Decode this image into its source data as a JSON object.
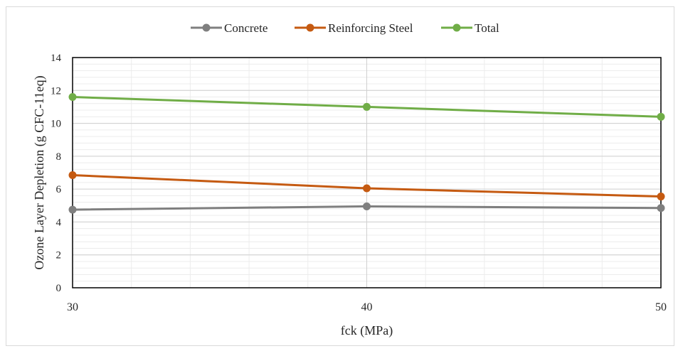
{
  "chart_data": {
    "type": "line",
    "title": "",
    "xlabel": "fck (MPa)",
    "ylabel": "Ozone Layer Depletion (g CFC-11eq)",
    "x": [
      30,
      40,
      50
    ],
    "x_tick_labels": [
      "30",
      "40",
      "50"
    ],
    "xlim": [
      30,
      50
    ],
    "ylim": [
      0,
      14
    ],
    "y_tick_labels": [
      "0",
      "2",
      "4",
      "6",
      "8",
      "10",
      "12",
      "14"
    ],
    "grid": true,
    "legend_position": "top",
    "series": [
      {
        "name": "Concrete",
        "values": [
          4.75,
          4.95,
          4.85
        ],
        "color": "#7f7f7f"
      },
      {
        "name": "Reinforcing Steel",
        "values": [
          6.85,
          6.05,
          5.55
        ],
        "color": "#c55a11"
      },
      {
        "name": "Total",
        "values": [
          11.6,
          11.0,
          10.4
        ],
        "color": "#70ad47"
      }
    ]
  }
}
